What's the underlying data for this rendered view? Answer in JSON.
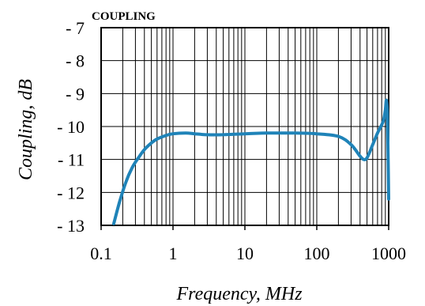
{
  "chart_data": {
    "type": "line",
    "title": "COUPLING",
    "xlabel": "Frequency, MHz",
    "ylabel": "Coupling, dB",
    "x_scale": "log",
    "xlim": [
      0.1,
      1000
    ],
    "ylim": [
      7,
      13
    ],
    "y_inverted": true,
    "grid": true,
    "x_ticks": [
      0.1,
      1,
      10,
      100,
      1000
    ],
    "x_tick_labels": [
      "0.1",
      "1",
      "10",
      "100",
      "1000"
    ],
    "y_ticks": [
      7,
      8,
      9,
      10,
      11,
      12,
      13
    ],
    "y_tick_labels": [
      "- 7",
      "- 8",
      "- 9",
      "- 10",
      "- 11",
      "- 12",
      "- 13"
    ],
    "series": [
      {
        "color": "#1f83b8",
        "x": [
          0.15,
          0.18,
          0.22,
          0.27,
          0.33,
          0.4,
          0.5,
          0.6,
          0.8,
          1.0,
          1.5,
          2,
          3,
          5,
          10,
          20,
          50,
          100,
          200,
          300,
          400,
          450,
          500,
          600,
          700,
          800,
          850,
          900,
          930,
          960,
          980,
          1000
        ],
        "values": [
          12.95,
          12.3,
          11.7,
          11.25,
          10.95,
          10.7,
          10.5,
          10.38,
          10.27,
          10.22,
          10.2,
          10.22,
          10.25,
          10.25,
          10.22,
          10.2,
          10.2,
          10.22,
          10.3,
          10.55,
          10.9,
          11.0,
          10.95,
          10.55,
          10.2,
          9.95,
          9.8,
          9.5,
          9.2,
          9.6,
          10.8,
          12.2
        ]
      }
    ]
  }
}
